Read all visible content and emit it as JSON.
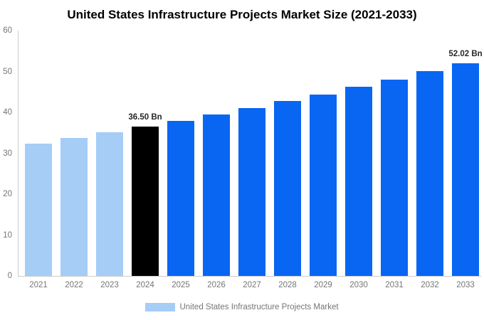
{
  "title": "United States Infrastructure Projects Market Size (2021-2033)",
  "legend": {
    "label": "United States Infrastructure Projects Market",
    "swatch_color": "#A5CDF6"
  },
  "colors": {
    "light_blue_bar": "#A5CDF6",
    "blue_bar": "#0866F2",
    "highlight_bar": "#000000",
    "axis_line": "#cccccc",
    "axis_text": "#757575",
    "data_label_text": "#262626",
    "title_text": "#000000",
    "background": "#ffffff"
  },
  "chart_data": {
    "type": "bar",
    "title": "United States Infrastructure Projects Market Size (2021-2033)",
    "xlabel": "",
    "ylabel": "",
    "ylim": [
      0,
      60
    ],
    "yticks": [
      0,
      10,
      20,
      30,
      40,
      50,
      60
    ],
    "grid": false,
    "legend_position": "bottom",
    "categories": [
      "2021",
      "2022",
      "2023",
      "2024",
      "2025",
      "2026",
      "2027",
      "2028",
      "2029",
      "2030",
      "2031",
      "2032",
      "2033"
    ],
    "values": [
      32.44,
      33.74,
      35.09,
      36.5,
      37.97,
      39.49,
      41.07,
      42.72,
      44.43,
      46.22,
      48.08,
      50.01,
      52.02
    ],
    "bar_colors": [
      "#A5CDF6",
      "#A5CDF6",
      "#A5CDF6",
      "#000000",
      "#0866F2",
      "#0866F2",
      "#0866F2",
      "#0866F2",
      "#0866F2",
      "#0866F2",
      "#0866F2",
      "#0866F2",
      "#0866F2"
    ],
    "bar_labels": [
      "",
      "",
      "",
      "36.50 Bn",
      "",
      "",
      "",
      "",
      "",
      "",
      "",
      "",
      "52.02 Bn"
    ],
    "series": [
      {
        "name": "United States Infrastructure Projects Market",
        "values": [
          32.44,
          33.74,
          35.09,
          36.5,
          37.97,
          39.49,
          41.07,
          42.72,
          44.43,
          46.22,
          48.08,
          50.01,
          52.02
        ]
      }
    ],
    "annotations": [
      {
        "category": "2024",
        "text": "36.50 Bn"
      },
      {
        "category": "2033",
        "text": "52.02 Bn"
      }
    ]
  }
}
